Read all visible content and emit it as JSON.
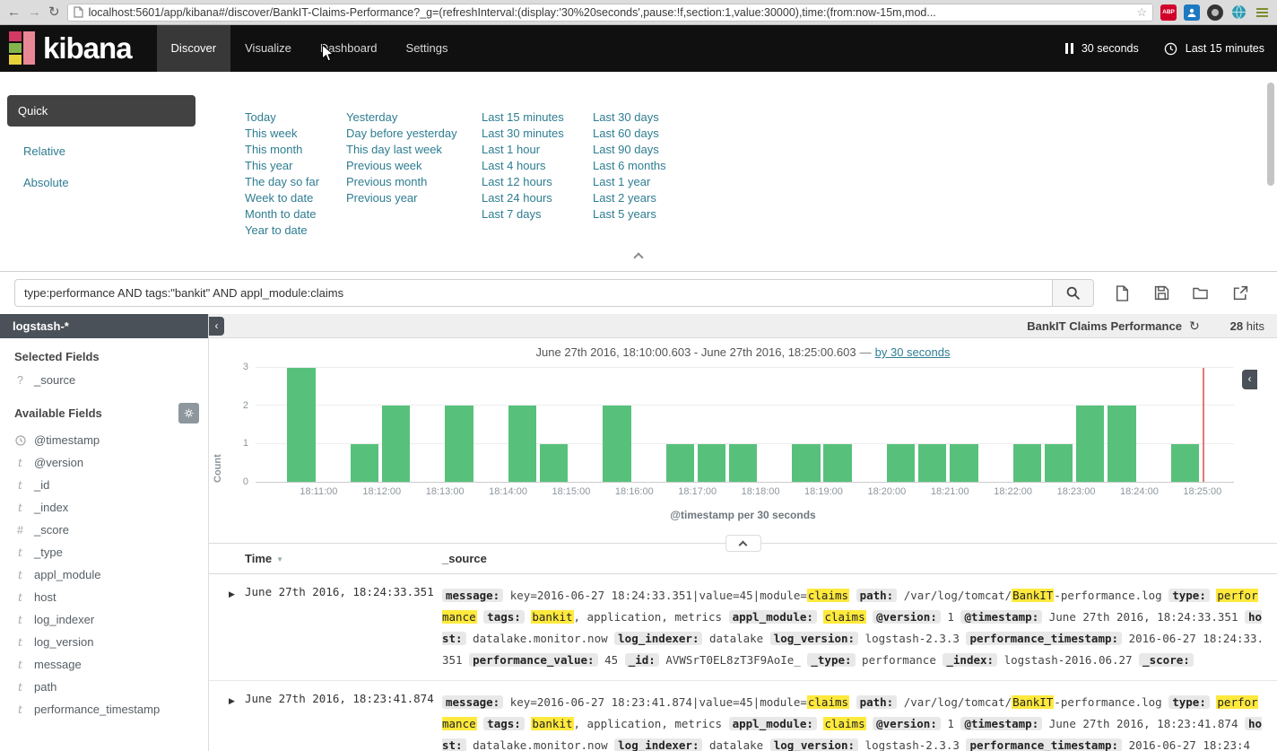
{
  "browser": {
    "url": "localhost:5601/app/kibana#/discover/BankIT-Claims-Performance?_g=(refreshInterval:(display:'30%20seconds',pause:!f,section:1,value:30000),time:(from:now-15m,mod...",
    "abp_label": "ABP"
  },
  "nav": {
    "logo": "kibana",
    "items": [
      "Discover",
      "Visualize",
      "Dashboard",
      "Settings"
    ],
    "active": "Discover",
    "refresh_interval": "30 seconds",
    "time_range": "Last 15 minutes"
  },
  "timepicker": {
    "modes": [
      "Quick",
      "Relative",
      "Absolute"
    ],
    "active_mode": "Quick",
    "columns": [
      [
        "Today",
        "This week",
        "This month",
        "This year",
        "The day so far",
        "Week to date",
        "Month to date",
        "Year to date"
      ],
      [
        "Yesterday",
        "Day before yesterday",
        "This day last week",
        "Previous week",
        "Previous month",
        "Previous year"
      ],
      [
        "Last 15 minutes",
        "Last 30 minutes",
        "Last 1 hour",
        "Last 4 hours",
        "Last 12 hours",
        "Last 24 hours",
        "Last 7 days"
      ],
      [
        "Last 30 days",
        "Last 60 days",
        "Last 90 days",
        "Last 6 months",
        "Last 1 year",
        "Last 2 years",
        "Last 5 years"
      ]
    ]
  },
  "search": {
    "query": "type:performance AND tags:\"bankit\" AND appl_module:claims"
  },
  "sidebar": {
    "index_pattern": "logstash-*",
    "selected_heading": "Selected Fields",
    "selected_fields": [
      {
        "type": "?",
        "name": "_source"
      }
    ],
    "available_heading": "Available Fields",
    "fields": [
      {
        "type": "clock",
        "name": "@timestamp"
      },
      {
        "type": "t",
        "name": "@version"
      },
      {
        "type": "t",
        "name": "_id"
      },
      {
        "type": "t",
        "name": "_index"
      },
      {
        "type": "#",
        "name": "_score"
      },
      {
        "type": "t",
        "name": "_type"
      },
      {
        "type": "t",
        "name": "appl_module"
      },
      {
        "type": "t",
        "name": "host"
      },
      {
        "type": "t",
        "name": "log_indexer"
      },
      {
        "type": "t",
        "name": "log_version"
      },
      {
        "type": "t",
        "name": "message"
      },
      {
        "type": "t",
        "name": "path"
      },
      {
        "type": "t",
        "name": "performance_timestamp"
      }
    ]
  },
  "results": {
    "saved_search": "BankIT Claims Performance",
    "hits": "28",
    "hits_label": "hits",
    "chart_title": "June 27th 2016, 18:10:00.603 - June 27th 2016, 18:25:00.603",
    "separator": "—",
    "interval_link": "by 30 seconds"
  },
  "chart_data": {
    "type": "bar",
    "title": "June 27th 2016, 18:10:00.603 - June 27th 2016, 18:25:00.603",
    "ylabel": "Count",
    "xlabel": "@timestamp per 30 seconds",
    "ylim": [
      0,
      3
    ],
    "yticks": [
      0,
      1,
      2,
      3
    ],
    "x_domain": [
      "18:10:00",
      "18:25:30"
    ],
    "bucket_seconds": 30,
    "bar_color": "#57c17b",
    "now_marker": "18:25:00",
    "grid": true,
    "legend": false,
    "xticks": [
      "18:11:00",
      "18:12:00",
      "18:13:00",
      "18:14:00",
      "18:15:00",
      "18:16:00",
      "18:17:00",
      "18:18:00",
      "18:19:00",
      "18:20:00",
      "18:21:00",
      "18:22:00",
      "18:23:00",
      "18:24:00",
      "18:25:00"
    ],
    "points": [
      {
        "x": "18:10:30",
        "y": 3
      },
      {
        "x": "18:11:30",
        "y": 1
      },
      {
        "x": "18:12:00",
        "y": 2
      },
      {
        "x": "18:13:00",
        "y": 2
      },
      {
        "x": "18:14:00",
        "y": 2
      },
      {
        "x": "18:14:30",
        "y": 1
      },
      {
        "x": "18:15:30",
        "y": 2
      },
      {
        "x": "18:16:30",
        "y": 1
      },
      {
        "x": "18:17:00",
        "y": 1
      },
      {
        "x": "18:17:30",
        "y": 1
      },
      {
        "x": "18:18:30",
        "y": 1
      },
      {
        "x": "18:19:00",
        "y": 1
      },
      {
        "x": "18:20:00",
        "y": 1
      },
      {
        "x": "18:20:30",
        "y": 1
      },
      {
        "x": "18:21:00",
        "y": 1
      },
      {
        "x": "18:22:00",
        "y": 1
      },
      {
        "x": "18:22:30",
        "y": 1
      },
      {
        "x": "18:23:00",
        "y": 2
      },
      {
        "x": "18:23:30",
        "y": 2
      },
      {
        "x": "18:24:30",
        "y": 1
      }
    ]
  },
  "table": {
    "time_column": "Time",
    "source_column": "_source",
    "rows": [
      {
        "time": "June 27th 2016, 18:24:33.351",
        "segments": [
          {
            "k": "field",
            "t": "message:"
          },
          {
            "k": "text",
            "t": " key=2016-06-27 18:24:33.351|value=45|module="
          },
          {
            "k": "hl",
            "t": "claims"
          },
          {
            "k": "text",
            "t": " "
          },
          {
            "k": "field",
            "t": "path:"
          },
          {
            "k": "text",
            "t": " /var/log/tomcat/"
          },
          {
            "k": "hl",
            "t": "BankIT"
          },
          {
            "k": "text",
            "t": "-performance.log "
          },
          {
            "k": "field",
            "t": "type:"
          },
          {
            "k": "text",
            "t": " "
          },
          {
            "k": "hl",
            "t": "performance"
          },
          {
            "k": "text",
            "t": " "
          },
          {
            "k": "field",
            "t": "tags:"
          },
          {
            "k": "text",
            "t": " "
          },
          {
            "k": "hl",
            "t": "bankit"
          },
          {
            "k": "text",
            "t": ", application, metrics "
          },
          {
            "k": "field",
            "t": "appl_module:"
          },
          {
            "k": "text",
            "t": " "
          },
          {
            "k": "hl",
            "t": "claims"
          },
          {
            "k": "text",
            "t": " "
          },
          {
            "k": "field",
            "t": "@version:"
          },
          {
            "k": "text",
            "t": " 1 "
          },
          {
            "k": "field",
            "t": "@timestamp:"
          },
          {
            "k": "text",
            "t": " June 27th 2016, 18:24:33.351 "
          },
          {
            "k": "field",
            "t": "host:"
          },
          {
            "k": "text",
            "t": " datalake.monitor.now "
          },
          {
            "k": "field",
            "t": "log_indexer:"
          },
          {
            "k": "text",
            "t": " datalake "
          },
          {
            "k": "field",
            "t": "log_version:"
          },
          {
            "k": "text",
            "t": " logstash-2.3.3 "
          },
          {
            "k": "field",
            "t": "performance_timestamp:"
          },
          {
            "k": "text",
            "t": " 2016-06-27 18:24:33.351 "
          },
          {
            "k": "field",
            "t": "performance_value:"
          },
          {
            "k": "text",
            "t": " 45 "
          },
          {
            "k": "field",
            "t": "_id:"
          },
          {
            "k": "text",
            "t": " AVWSrT0EL8zT3F9AoIe_ "
          },
          {
            "k": "field",
            "t": "_type:"
          },
          {
            "k": "text",
            "t": " performance "
          },
          {
            "k": "field",
            "t": "_index:"
          },
          {
            "k": "text",
            "t": " logstash-2016.06.27 "
          },
          {
            "k": "field",
            "t": "_score:"
          }
        ]
      },
      {
        "time": "June 27th 2016, 18:23:41.874",
        "segments": [
          {
            "k": "field",
            "t": "message:"
          },
          {
            "k": "text",
            "t": " key=2016-06-27 18:23:41.874|value=45|module="
          },
          {
            "k": "hl",
            "t": "claims"
          },
          {
            "k": "text",
            "t": " "
          },
          {
            "k": "field",
            "t": "path:"
          },
          {
            "k": "text",
            "t": " /var/log/tomcat/"
          },
          {
            "k": "hl",
            "t": "BankIT"
          },
          {
            "k": "text",
            "t": "-performance.log "
          },
          {
            "k": "field",
            "t": "type:"
          },
          {
            "k": "text",
            "t": " "
          },
          {
            "k": "hl",
            "t": "performance"
          },
          {
            "k": "text",
            "t": " "
          },
          {
            "k": "field",
            "t": "tags:"
          },
          {
            "k": "text",
            "t": " "
          },
          {
            "k": "hl",
            "t": "bankit"
          },
          {
            "k": "text",
            "t": ", application, metrics "
          },
          {
            "k": "field",
            "t": "appl_module:"
          },
          {
            "k": "text",
            "t": " "
          },
          {
            "k": "hl",
            "t": "claims"
          },
          {
            "k": "text",
            "t": " "
          },
          {
            "k": "field",
            "t": "@version:"
          },
          {
            "k": "text",
            "t": " 1 "
          },
          {
            "k": "field",
            "t": "@timestamp:"
          },
          {
            "k": "text",
            "t": " June 27th 2016, 18:23:41.874 "
          },
          {
            "k": "field",
            "t": "host:"
          },
          {
            "k": "text",
            "t": " datalake.monitor.now "
          },
          {
            "k": "field",
            "t": "log_indexer:"
          },
          {
            "k": "text",
            "t": " datalake "
          },
          {
            "k": "field",
            "t": "log_version:"
          },
          {
            "k": "text",
            "t": " logstash-2.3.3 "
          },
          {
            "k": "field",
            "t": "performance_timestamp:"
          },
          {
            "k": "text",
            "t": " 2016-06-27 18:23:4"
          }
        ]
      }
    ]
  }
}
